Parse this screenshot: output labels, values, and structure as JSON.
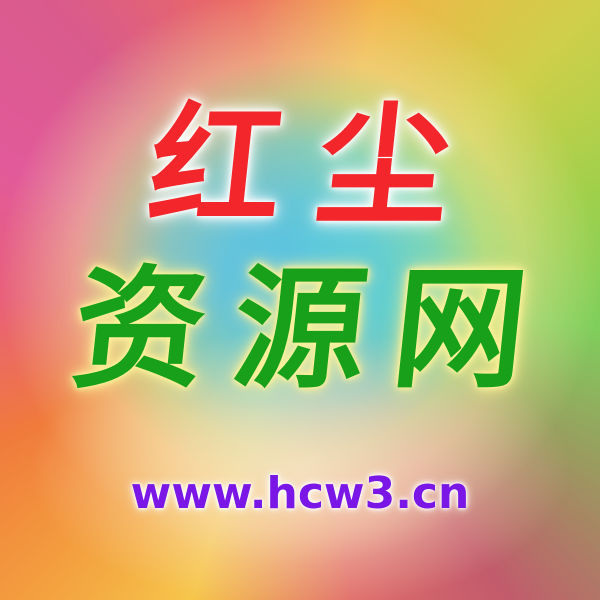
{
  "banner": {
    "line1": "红尘",
    "line2": "资源网",
    "url": "www.hcw3.cn"
  },
  "colors": {
    "line1": "#f2262b",
    "line2": "#18a01a",
    "url": "#7a16e6",
    "center_glow": "#4ec8eb"
  }
}
